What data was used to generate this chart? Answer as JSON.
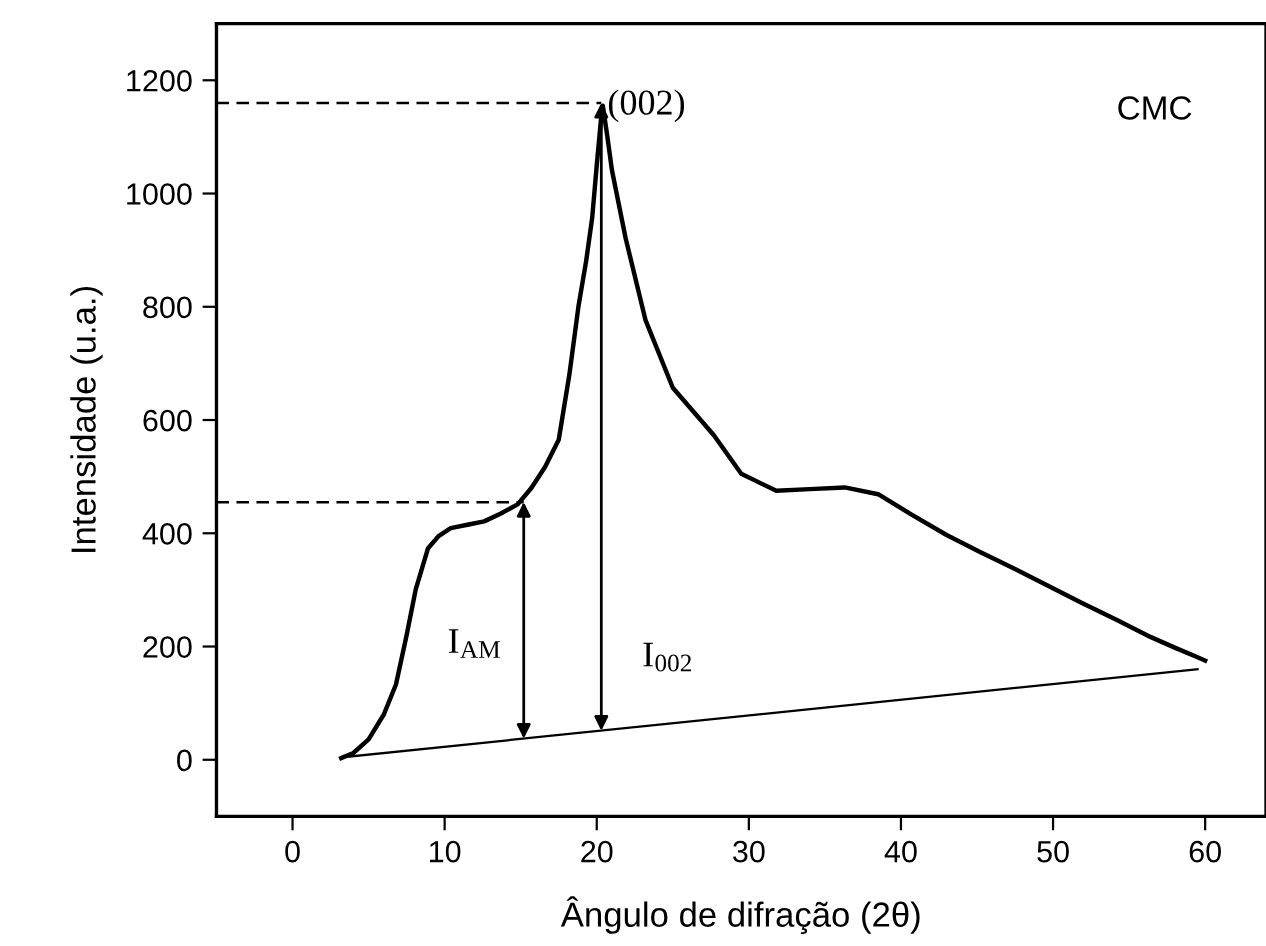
{
  "chart_data": {
    "type": "line",
    "xlabel": "Ângulo de difração (2θ)",
    "ylabel": "Intensidade (u.a.)",
    "xlim": [
      -5,
      64
    ],
    "ylim": [
      -100,
      1300
    ],
    "xticks": [
      0,
      10,
      20,
      30,
      40,
      50,
      60
    ],
    "yticks": [
      0,
      200,
      400,
      600,
      800,
      1000,
      1200
    ],
    "grid": false,
    "marker": "none",
    "series": [
      {
        "color": "#000000",
        "line_style": "solid",
        "x": [
          3.2,
          4.0,
          5.0,
          6.0,
          6.8,
          7.5,
          8.1,
          8.9,
          9.6,
          10.4,
          11.5,
          12.6,
          13.7,
          14.8,
          15.7,
          16.6,
          17.5,
          18.2,
          18.8,
          19.3,
          19.7,
          20.0,
          20.3,
          20.4,
          20.7,
          21.0,
          21.9,
          23.2,
          25.0,
          27.7,
          29.5,
          31.8,
          34.0,
          36.3,
          38.5,
          40.7,
          43.0,
          45.2,
          47.5,
          49.7,
          51.9,
          54.2,
          56.4,
          58.0,
          59.5,
          60.0
        ],
        "values": [
          3,
          12,
          36,
          80,
          133,
          220,
          301,
          373,
          395,
          409,
          415,
          421,
          435,
          451,
          480,
          517,
          565,
          680,
          801,
          880,
          957,
          1050,
          1137,
          1155,
          1100,
          1041,
          921,
          777,
          657,
          573,
          505,
          475,
          478,
          481,
          469,
          433,
          397,
          367,
          337,
          307,
          277,
          247,
          217,
          198,
          181,
          175
        ]
      },
      {
        "color": "#000000",
        "line_style": "solid",
        "x": [
          3.5,
          59.5
        ],
        "values": [
          5,
          160
        ]
      },
      {
        "color": "#000000",
        "line_style": "dashed",
        "x": [
          -5,
          20.3
        ],
        "values": [
          1160,
          1160
        ]
      },
      {
        "color": "#000000",
        "line_style": "dashed",
        "x": [
          -5,
          15.2
        ],
        "values": [
          455,
          455
        ]
      }
    ],
    "annotations": [
      {
        "text": "(002)",
        "x": 20.4,
        "y": 1155
      },
      "CMC",
      "I$_{AM}$",
      "I$_{002}$"
    ]
  }
}
